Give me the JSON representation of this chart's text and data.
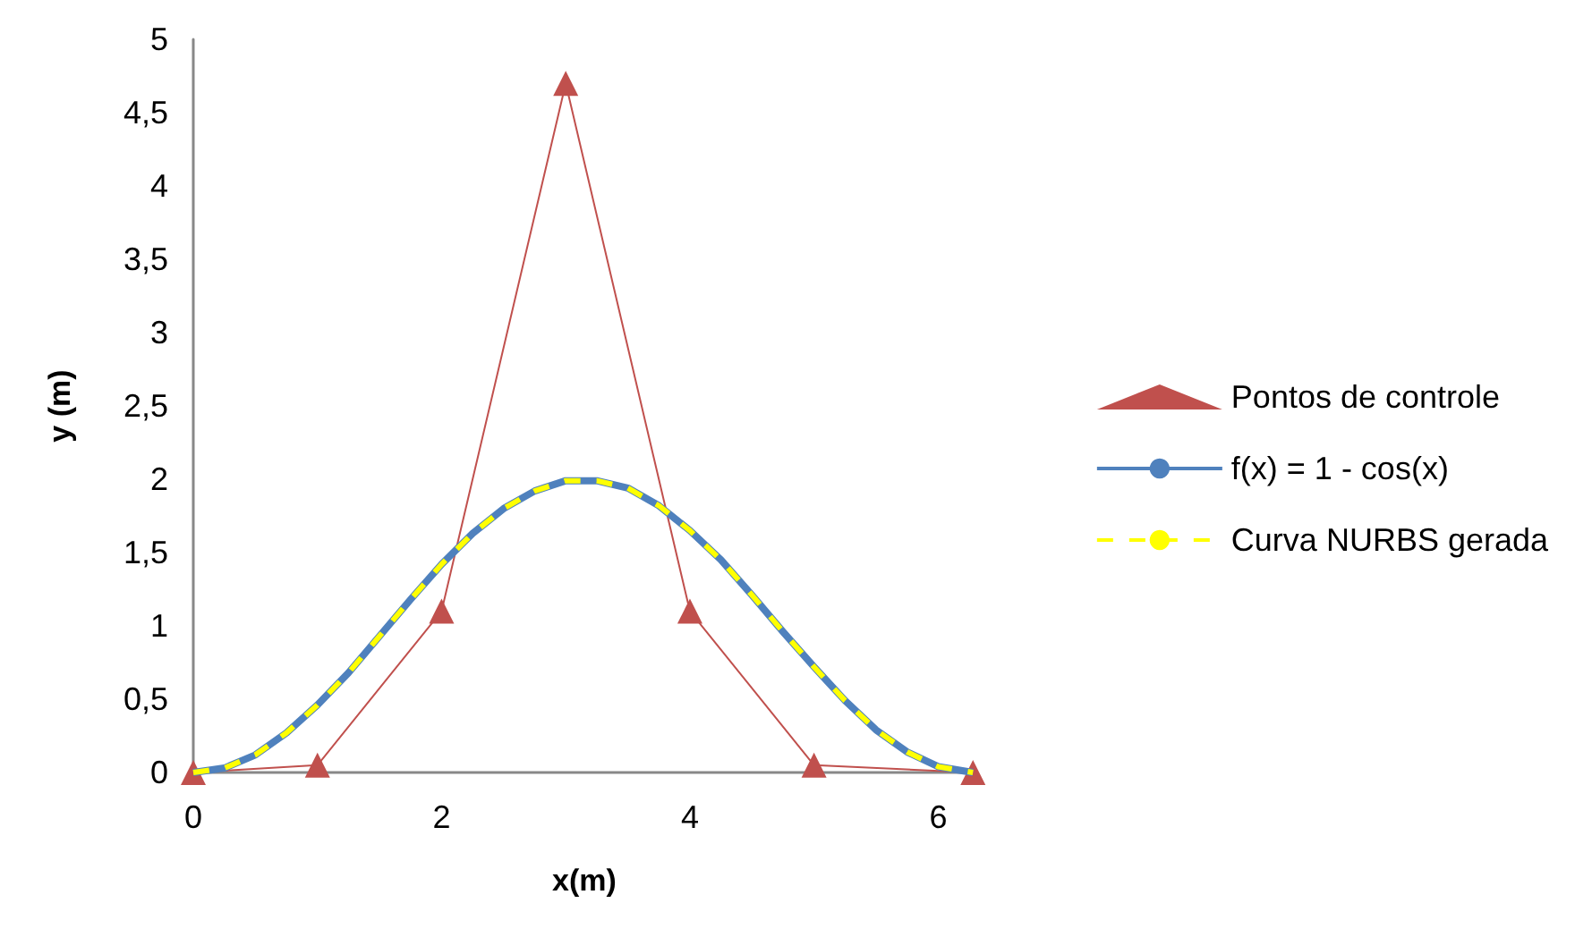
{
  "chart_data": {
    "type": "line",
    "xlabel": "x(m)",
    "ylabel": "y (m)",
    "xlim": [
      0,
      6.3
    ],
    "xticks": [
      0,
      2,
      4,
      6
    ],
    "ylim": [
      0,
      5
    ],
    "yticks": [
      0,
      {
        "value": 0.5,
        "label": "0,5"
      },
      1,
      {
        "value": 1.5,
        "label": "1,5"
      },
      2,
      {
        "value": 2.5,
        "label": "2,5"
      },
      3,
      {
        "value": 3.5,
        "label": "3,5"
      },
      4,
      {
        "value": 4.5,
        "label": "4,5"
      },
      5
    ],
    "grid": false,
    "legend": "right",
    "series": [
      {
        "name": "Pontos de controle",
        "color": "#c0504d",
        "marker": "triangle",
        "line_style": "solid",
        "x": [
          0,
          1,
          2,
          3,
          4,
          5,
          6.28
        ],
        "values": [
          0,
          0.05,
          1.1,
          4.7,
          1.1,
          0.05,
          0
        ]
      },
      {
        "name": "f(x) = 1 - cos(x)",
        "color": "#4f81bd",
        "marker": "none",
        "line_style": "solid",
        "x": [
          0,
          0.25,
          0.5,
          0.75,
          1,
          1.25,
          1.5,
          1.75,
          2,
          2.25,
          2.5,
          2.75,
          3,
          3.25,
          3.5,
          3.75,
          4,
          4.25,
          4.5,
          4.75,
          5,
          5.25,
          5.5,
          5.75,
          6,
          6.28
        ],
        "values": [
          0,
          0.03,
          0.12,
          0.27,
          0.46,
          0.68,
          0.93,
          1.18,
          1.42,
          1.63,
          1.8,
          1.92,
          1.99,
          1.99,
          1.94,
          1.82,
          1.65,
          1.45,
          1.21,
          0.96,
          0.72,
          0.49,
          0.29,
          0.14,
          0.04,
          0
        ]
      },
      {
        "name": "Curva NURBS gerada",
        "color": "#ffff00",
        "marker": "none",
        "line_style": "dashed",
        "x": [
          0,
          0.25,
          0.5,
          0.75,
          1,
          1.25,
          1.5,
          1.75,
          2,
          2.25,
          2.5,
          2.75,
          3,
          3.25,
          3.5,
          3.75,
          4,
          4.25,
          4.5,
          4.75,
          5,
          5.25,
          5.5,
          5.75,
          6,
          6.28
        ],
        "values": [
          0,
          0.03,
          0.12,
          0.27,
          0.46,
          0.68,
          0.93,
          1.18,
          1.42,
          1.63,
          1.8,
          1.92,
          1.99,
          1.99,
          1.94,
          1.82,
          1.65,
          1.45,
          1.21,
          0.96,
          0.72,
          0.49,
          0.29,
          0.14,
          0.04,
          0
        ]
      }
    ]
  }
}
